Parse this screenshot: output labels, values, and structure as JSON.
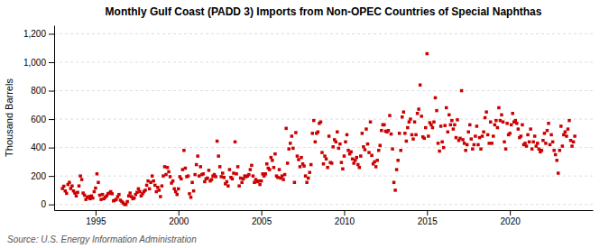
{
  "chart_data": {
    "type": "scatter",
    "title": "Monthly Gulf Coast (PADD 3) Imports from Non-OPEC Countries of Special Naphthas",
    "ylabel": "Thousand Barrels",
    "source": "Source: U.S. Energy Information Administration",
    "color": "#cc0000",
    "marker": "square",
    "grid": true,
    "xlim": [
      1992.5,
      2025.0
    ],
    "xticks": [
      1995,
      2000,
      2005,
      2010,
      2015,
      2020
    ],
    "ylim": [
      -40,
      1260
    ],
    "yticks": [
      0,
      200,
      400,
      600,
      800,
      {
        "value": 1000,
        "label": "1,000"
      },
      {
        "value": 1200,
        "label": "1,200"
      }
    ],
    "x": [
      1993,
      1993.0833333333333,
      1993.1666666666667,
      1993.25,
      1993.3333333333333,
      1993.4166666666667,
      1993.5,
      1993.5833333333333,
      1993.6666666666667,
      1993.75,
      1993.8333333333333,
      1993.9166666666667,
      1994,
      1994.0833333333333,
      1994.1666666666667,
      1994.25,
      1994.3333333333333,
      1994.4166666666667,
      1994.5,
      1994.5833333333333,
      1994.6666666666667,
      1994.75,
      1994.8333333333333,
      1994.9166666666667,
      1995,
      1995.0833333333333,
      1995.1666666666667,
      1995.25,
      1995.3333333333333,
      1995.4166666666667,
      1995.5,
      1995.5833333333333,
      1995.6666666666667,
      1995.75,
      1995.8333333333333,
      1995.9166666666667,
      1996,
      1996.0833333333333,
      1996.1666666666667,
      1996.25,
      1996.3333333333333,
      1996.4166666666667,
      1996.5,
      1996.5833333333333,
      1996.6666666666667,
      1996.75,
      1996.8333333333333,
      1996.9166666666667,
      1997,
      1997.0833333333333,
      1997.1666666666667,
      1997.25,
      1997.3333333333333,
      1997.4166666666667,
      1997.5,
      1997.5833333333333,
      1997.6666666666667,
      1997.75,
      1997.8333333333333,
      1997.9166666666667,
      1998,
      1998.0833333333333,
      1998.1666666666667,
      1998.25,
      1998.3333333333333,
      1998.4166666666667,
      1998.5,
      1998.5833333333333,
      1998.6666666666667,
      1998.75,
      1998.8333333333333,
      1998.9166666666667,
      1999,
      1999.0833333333333,
      1999.1666666666667,
      1999.25,
      1999.3333333333333,
      1999.4166666666667,
      1999.5,
      1999.5833333333333,
      1999.6666666666667,
      1999.75,
      1999.8333333333333,
      1999.9166666666667,
      2000,
      2000.0833333333333,
      2000.1666666666667,
      2000.25,
      2000.3333333333333,
      2000.4166666666667,
      2000.5,
      2000.5833333333333,
      2000.6666666666667,
      2000.75,
      2000.8333333333333,
      2000.9166666666667,
      2001,
      2001.0833333333333,
      2001.1666666666667,
      2001.25,
      2001.3333333333333,
      2001.4166666666667,
      2001.5,
      2001.5833333333333,
      2001.6666666666667,
      2001.75,
      2001.8333333333333,
      2001.9166666666667,
      2002,
      2002.0833333333333,
      2002.1666666666667,
      2002.25,
      2002.3333333333333,
      2002.4166666666667,
      2002.5,
      2002.5833333333333,
      2002.6666666666667,
      2002.75,
      2002.8333333333333,
      2002.9166666666667,
      2003,
      2003.0833333333333,
      2003.1666666666667,
      2003.25,
      2003.3333333333333,
      2003.4166666666667,
      2003.5,
      2003.5833333333333,
      2003.6666666666667,
      2003.75,
      2003.8333333333333,
      2003.9166666666667,
      2004,
      2004.0833333333333,
      2004.1666666666667,
      2004.25,
      2004.3333333333333,
      2004.4166666666667,
      2004.5,
      2004.5833333333333,
      2004.6666666666667,
      2004.75,
      2004.8333333333333,
      2004.9166666666667,
      2005,
      2005.0833333333333,
      2005.1666666666667,
      2005.25,
      2005.3333333333333,
      2005.4166666666667,
      2005.5,
      2005.5833333333333,
      2005.6666666666667,
      2005.75,
      2005.8333333333333,
      2005.9166666666667,
      2006,
      2006.0833333333333,
      2006.1666666666667,
      2006.25,
      2006.3333333333333,
      2006.4166666666667,
      2006.5,
      2006.5833333333333,
      2006.6666666666667,
      2006.75,
      2006.8333333333333,
      2006.9166666666667,
      2007,
      2007.0833333333333,
      2007.1666666666667,
      2007.25,
      2007.3333333333333,
      2007.4166666666667,
      2007.5,
      2007.5833333333333,
      2007.6666666666667,
      2007.75,
      2007.8333333333333,
      2007.9166666666667,
      2008,
      2008.0833333333333,
      2008.1666666666667,
      2008.25,
      2008.3333333333333,
      2008.4166666666667,
      2008.5,
      2008.5833333333333,
      2008.6666666666667,
      2008.75,
      2008.8333333333333,
      2008.9166666666667,
      2009,
      2009.0833333333333,
      2009.1666666666667,
      2009.25,
      2009.3333333333333,
      2009.4166666666667,
      2009.5,
      2009.5833333333333,
      2009.6666666666667,
      2009.75,
      2009.8333333333333,
      2009.9166666666667,
      2010,
      2010.0833333333333,
      2010.1666666666667,
      2010.25,
      2010.3333333333333,
      2010.4166666666667,
      2010.5,
      2010.5833333333333,
      2010.6666666666667,
      2010.75,
      2010.8333333333333,
      2010.9166666666667,
      2011,
      2011.0833333333333,
      2011.1666666666667,
      2011.25,
      2011.3333333333333,
      2011.4166666666667,
      2011.5,
      2011.5833333333333,
      2011.6666666666667,
      2011.75,
      2011.8333333333333,
      2011.9166666666667,
      2012,
      2012.0833333333333,
      2012.1666666666667,
      2012.25,
      2012.3333333333333,
      2012.4166666666667,
      2012.5,
      2012.5833333333333,
      2012.6666666666667,
      2012.75,
      2012.8333333333333,
      2012.9166666666667,
      2013,
      2013.0833333333333,
      2013.1666666666667,
      2013.25,
      2013.3333333333333,
      2013.4166666666667,
      2013.5,
      2013.5833333333333,
      2013.6666666666667,
      2013.75,
      2013.8333333333333,
      2013.9166666666667,
      2014,
      2014.0833333333333,
      2014.1666666666667,
      2014.25,
      2014.3333333333333,
      2014.4166666666667,
      2014.5,
      2014.5833333333333,
      2014.6666666666667,
      2014.75,
      2014.8333333333333,
      2014.9166666666667,
      2015,
      2015.0833333333333,
      2015.1666666666667,
      2015.25,
      2015.3333333333333,
      2015.4166666666667,
      2015.5,
      2015.5833333333333,
      2015.6666666666667,
      2015.75,
      2015.8333333333333,
      2015.9166666666667,
      2016,
      2016.0833333333333,
      2016.1666666666667,
      2016.25,
      2016.3333333333333,
      2016.4166666666667,
      2016.5,
      2016.5833333333333,
      2016.6666666666667,
      2016.75,
      2016.8333333333333,
      2016.9166666666667,
      2017,
      2017.0833333333333,
      2017.1666666666667,
      2017.25,
      2017.3333333333333,
      2017.4166666666667,
      2017.5,
      2017.5833333333333,
      2017.6666666666667,
      2017.75,
      2017.8333333333333,
      2017.9166666666667,
      2018,
      2018.0833333333333,
      2018.1666666666667,
      2018.25,
      2018.3333333333333,
      2018.4166666666667,
      2018.5,
      2018.5833333333333,
      2018.6666666666667,
      2018.75,
      2018.8333333333333,
      2018.9166666666667,
      2019,
      2019.0833333333333,
      2019.1666666666667,
      2019.25,
      2019.3333333333333,
      2019.4166666666667,
      2019.5,
      2019.5833333333333,
      2019.6666666666667,
      2019.75,
      2019.8333333333333,
      2019.9166666666667,
      2020,
      2020.0833333333333,
      2020.1666666666667,
      2020.25,
      2020.3333333333333,
      2020.4166666666667,
      2020.5,
      2020.5833333333333,
      2020.6666666666667,
      2020.75,
      2020.8333333333333,
      2020.9166666666667,
      2021,
      2021.0833333333333,
      2021.1666666666667,
      2021.25,
      2021.3333333333333,
      2021.4166666666667,
      2021.5,
      2021.5833333333333,
      2021.6666666666667,
      2021.75,
      2021.8333333333333,
      2021.9166666666667,
      2022,
      2022.0833333333333,
      2022.1666666666667,
      2022.25,
      2022.3333333333333,
      2022.4166666666667,
      2022.5,
      2022.5833333333333,
      2022.6666666666667,
      2022.75,
      2022.8333333333333,
      2022.9166666666667,
      2023,
      2023.0833333333333,
      2023.1666666666667,
      2023.25,
      2023.3333333333333,
      2023.4166666666667,
      2023.5,
      2023.5833333333333,
      2023.6666666666667,
      2023.75,
      2023.8333333333333,
      2023.9166666666667
    ],
    "values": [
      112,
      128,
      95,
      78,
      140,
      155,
      112,
      130,
      95,
      80,
      60,
      85,
      130,
      200,
      175,
      80,
      65,
      35,
      50,
      55,
      40,
      60,
      45,
      90,
      115,
      215,
      155,
      65,
      35,
      70,
      40,
      50,
      60,
      75,
      80,
      90,
      75,
      25,
      30,
      35,
      55,
      70,
      30,
      20,
      10,
      0,
      0,
      20,
      60,
      80,
      55,
      40,
      45,
      70,
      85,
      110,
      90,
      60,
      75,
      90,
      100,
      135,
      165,
      110,
      155,
      200,
      165,
      135,
      90,
      120,
      100,
      55,
      130,
      200,
      265,
      210,
      260,
      230,
      195,
      150,
      165,
      110,
      90,
      70,
      110,
      195,
      180,
      245,
      380,
      255,
      195,
      200,
      75,
      50,
      155,
      95,
      210,
      280,
      340,
      200,
      265,
      210,
      215,
      160,
      180,
      185,
      240,
      165,
      175,
      200,
      210,
      195,
      445,
      340,
      265,
      195,
      220,
      190,
      145,
      160,
      130,
      245,
      190,
      180,
      220,
      440,
      215,
      265,
      130,
      185,
      155,
      180,
      200,
      195,
      200,
      210,
      245,
      275,
      200,
      155,
      175,
      160,
      165,
      140,
      165,
      215,
      200,
      215,
      285,
      255,
      245,
      330,
      310,
      260,
      355,
      200,
      190,
      245,
      185,
      200,
      175,
      210,
      535,
      290,
      390,
      430,
      480,
      395,
      155,
      505,
      340,
      315,
      265,
      330,
      285,
      270,
      200,
      155,
      185,
      225,
      280,
      500,
      590,
      440,
      500,
      510,
      570,
      580,
      365,
      285,
      340,
      320,
      260,
      480,
      295,
      290,
      405,
      455,
      440,
      510,
      395,
      425,
      295,
      250,
      340,
      440,
      490,
      380,
      355,
      370,
      320,
      290,
      310,
      330,
      280,
      260,
      340,
      500,
      405,
      385,
      530,
      425,
      365,
      580,
      345,
      285,
      300,
      265,
      310,
      380,
      415,
      520,
      560,
      560,
      515,
      510,
      520,
      625,
      495,
      390,
      155,
      100,
      245,
      310,
      500,
      380,
      615,
      650,
      500,
      445,
      540,
      580,
      600,
      490,
      460,
      580,
      490,
      640,
      670,
      840,
      620,
      475,
      465,
      540,
      1060,
      480,
      575,
      560,
      540,
      580,
      750,
      660,
      430,
      375,
      550,
      440,
      400,
      555,
      680,
      510,
      630,
      560,
      590,
      530,
      560,
      470,
      595,
      450,
      465,
      800,
      455,
      430,
      380,
      420,
      510,
      560,
      460,
      390,
      420,
      480,
      550,
      420,
      470,
      390,
      480,
      510,
      610,
      650,
      490,
      430,
      580,
      430,
      480,
      560,
      590,
      540,
      680,
      590,
      630,
      580,
      440,
      390,
      570,
      490,
      500,
      560,
      640,
      580,
      590,
      570,
      530,
      470,
      480,
      560,
      420,
      430,
      410,
      490,
      440,
      530,
      390,
      440,
      480,
      410,
      430,
      390,
      370,
      380,
      450,
      500,
      430,
      520,
      570,
      420,
      490,
      440,
      380,
      350,
      310,
      220,
      380,
      550,
      410,
      490,
      510,
      480,
      530,
      590,
      450,
      410,
      440,
      480
    ]
  }
}
